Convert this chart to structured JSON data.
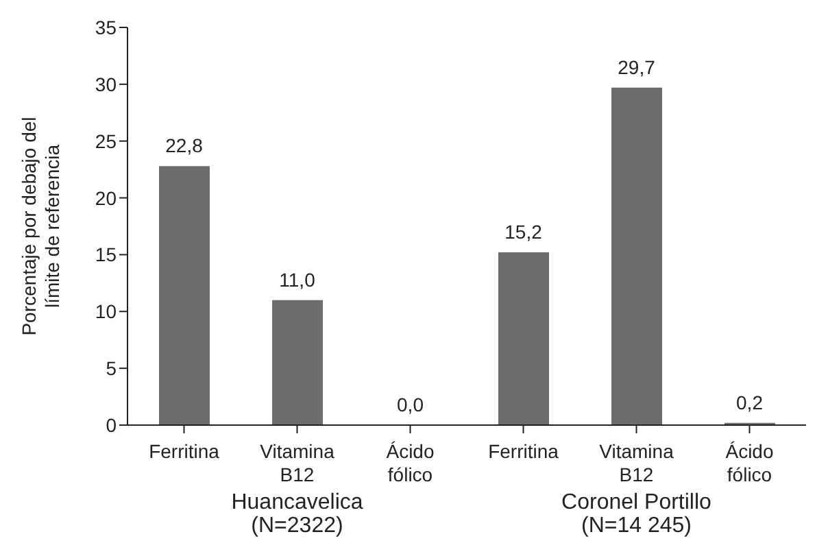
{
  "chart_data": {
    "type": "bar",
    "ylabel": "Porcentaje por debajo del\nlímite de referencia",
    "categories": [
      "Ferritina",
      "Vitamina\nB12",
      "Ácido\nfólico",
      "Ferritina",
      "Vitamina\nB12",
      "Ácido\nfólico"
    ],
    "values": [
      22.8,
      11.0,
      0.0,
      15.2,
      29.7,
      0.2
    ],
    "value_labels": [
      "22,8",
      "11,0",
      "0,0",
      "15,2",
      "29,7",
      "0,2"
    ],
    "color": "#6d6d6f",
    "ylim": [
      0,
      35
    ],
    "yticks": [
      0,
      5,
      10,
      15,
      20,
      25,
      30,
      35
    ],
    "grid": false,
    "annotations": [
      "Huancavelica\n(N=2322)",
      "Coronel Portillo\n(N=14 245)"
    ]
  }
}
